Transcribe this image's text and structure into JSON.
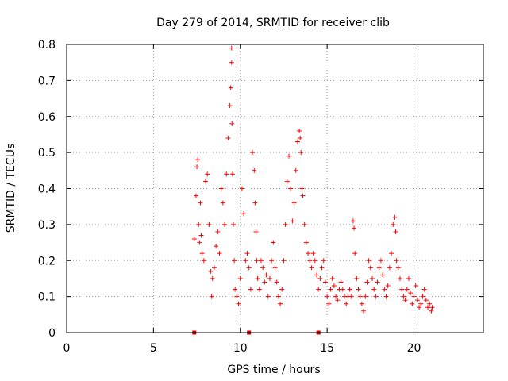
{
  "chart_data": {
    "type": "scatter",
    "title": "Day 279 of 2014, SRMTID for receiver clib",
    "xlabel": "GPS time / hours",
    "ylabel": "SRMTID / TECUs",
    "xlim": [
      0,
      24
    ],
    "ylim": [
      0,
      0.8
    ],
    "xticks": [
      0,
      5,
      10,
      15,
      20
    ],
    "yticks": [
      0,
      0.1,
      0.2,
      0.3,
      0.4,
      0.5,
      0.6,
      0.7,
      0.8
    ],
    "grid": true,
    "marker": "plus",
    "color": "#ff0000",
    "marker_color": "#cc0000",
    "series": [
      {
        "name": "SRMTID",
        "x": [
          7.35,
          7.45,
          7.5,
          7.55,
          7.6,
          7.65,
          7.7,
          7.75,
          7.8,
          7.9,
          8.0,
          8.1,
          8.2,
          8.3,
          8.35,
          8.4,
          8.5,
          8.6,
          8.7,
          8.8,
          8.9,
          9.0,
          9.1,
          9.2,
          9.3,
          9.4,
          9.45,
          9.5,
          9.5,
          9.52,
          9.55,
          9.6,
          9.65,
          9.7,
          9.8,
          9.9,
          10.0,
          10.1,
          10.2,
          10.3,
          10.4,
          10.5,
          10.6,
          10.7,
          10.8,
          10.85,
          10.9,
          10.95,
          11.0,
          11.1,
          11.2,
          11.3,
          11.4,
          11.5,
          11.6,
          11.7,
          11.8,
          11.9,
          12.0,
          12.1,
          12.2,
          12.3,
          12.4,
          12.5,
          12.6,
          12.7,
          12.8,
          12.9,
          13.0,
          13.1,
          13.2,
          13.3,
          13.4,
          13.45,
          13.5,
          13.55,
          13.6,
          13.7,
          13.8,
          13.9,
          14.0,
          14.1,
          14.2,
          14.3,
          14.4,
          14.5,
          14.6,
          14.7,
          14.8,
          14.9,
          15.0,
          15.1,
          15.2,
          15.3,
          15.4,
          15.5,
          15.6,
          15.7,
          15.8,
          15.9,
          16.0,
          16.1,
          16.2,
          16.3,
          16.4,
          16.5,
          16.55,
          16.6,
          16.7,
          16.8,
          16.9,
          17.0,
          17.1,
          17.2,
          17.3,
          17.4,
          17.5,
          17.6,
          17.7,
          17.8,
          17.9,
          18.0,
          18.1,
          18.2,
          18.3,
          18.4,
          18.5,
          18.6,
          18.7,
          18.8,
          18.9,
          18.95,
          19.0,
          19.1,
          19.2,
          19.3,
          19.4,
          19.5,
          19.6,
          19.7,
          19.8,
          19.9,
          20.0,
          20.1,
          20.2,
          20.3,
          20.4,
          20.5,
          20.6,
          20.7,
          20.8,
          20.9,
          21.0,
          21.05
        ],
        "y": [
          0.26,
          0.38,
          0.46,
          0.48,
          0.3,
          0.25,
          0.36,
          0.27,
          0.22,
          0.2,
          0.42,
          0.44,
          0.3,
          0.17,
          0.1,
          0.15,
          0.18,
          0.24,
          0.28,
          0.22,
          0.4,
          0.36,
          0.3,
          0.44,
          0.54,
          0.63,
          0.68,
          0.75,
          0.79,
          0.58,
          0.44,
          0.3,
          0.2,
          0.12,
          0.1,
          0.08,
          0.15,
          0.4,
          0.33,
          0.2,
          0.22,
          0.18,
          0.12,
          0.5,
          0.45,
          0.36,
          0.28,
          0.2,
          0.15,
          0.12,
          0.2,
          0.18,
          0.14,
          0.16,
          0.1,
          0.15,
          0.2,
          0.25,
          0.18,
          0.14,
          0.1,
          0.08,
          0.12,
          0.2,
          0.3,
          0.42,
          0.49,
          0.4,
          0.31,
          0.36,
          0.45,
          0.53,
          0.56,
          0.54,
          0.5,
          0.4,
          0.38,
          0.3,
          0.25,
          0.22,
          0.2,
          0.18,
          0.22,
          0.2,
          0.16,
          0.12,
          0.15,
          0.18,
          0.2,
          0.14,
          0.1,
          0.08,
          0.12,
          0.15,
          0.13,
          0.1,
          0.09,
          0.12,
          0.14,
          0.12,
          0.1,
          0.08,
          0.1,
          0.12,
          0.1,
          0.31,
          0.29,
          0.22,
          0.15,
          0.12,
          0.1,
          0.08,
          0.06,
          0.1,
          0.14,
          0.2,
          0.18,
          0.15,
          0.12,
          0.1,
          0.14,
          0.18,
          0.2,
          0.16,
          0.12,
          0.1,
          0.13,
          0.18,
          0.22,
          0.3,
          0.32,
          0.28,
          0.2,
          0.18,
          0.15,
          0.12,
          0.1,
          0.09,
          0.12,
          0.15,
          0.11,
          0.08,
          0.1,
          0.13,
          0.09,
          0.07,
          0.08,
          0.1,
          0.12,
          0.09,
          0.07,
          0.08,
          0.06,
          0.07
        ]
      }
    ],
    "axis_markers_x": [
      7.35,
      10.5,
      14.5
    ]
  }
}
